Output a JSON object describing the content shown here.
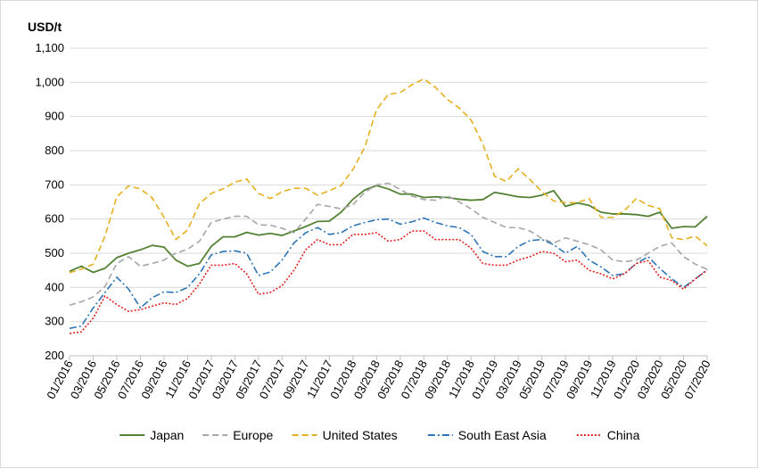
{
  "chart_data": {
    "type": "line",
    "ylabel": "USD/t",
    "ylim": [
      200,
      1100
    ],
    "yticks": [
      200,
      300,
      400,
      500,
      600,
      700,
      800,
      900,
      1000,
      1100
    ],
    "ytick_labels": [
      "200",
      "300",
      "400",
      "500",
      "600",
      "700",
      "800",
      "900",
      "1,000",
      "1,100"
    ],
    "grid": true,
    "legend_position": "bottom",
    "x": [
      "01/2016",
      "02/2016",
      "03/2016",
      "04/2016",
      "05/2016",
      "06/2016",
      "07/2016",
      "08/2016",
      "09/2016",
      "10/2016",
      "11/2016",
      "12/2016",
      "01/2017",
      "02/2017",
      "03/2017",
      "04/2017",
      "05/2017",
      "06/2017",
      "07/2017",
      "08/2017",
      "09/2017",
      "10/2017",
      "11/2017",
      "12/2017",
      "01/2018",
      "02/2018",
      "03/2018",
      "04/2018",
      "05/2018",
      "06/2018",
      "07/2018",
      "08/2018",
      "09/2018",
      "10/2018",
      "11/2018",
      "12/2018",
      "01/2019",
      "02/2019",
      "03/2019",
      "04/2019",
      "05/2019",
      "06/2019",
      "07/2019",
      "08/2019",
      "09/2019",
      "10/2019",
      "11/2019",
      "12/2019",
      "01/2020",
      "02/2020",
      "03/2020",
      "04/2020",
      "05/2020",
      "06/2020",
      "07/2020"
    ],
    "x_tick_labels": [
      "01/2016",
      "03/2016",
      "05/2016",
      "07/2016",
      "09/2016",
      "11/2016",
      "01/2017",
      "03/2017",
      "05/2017",
      "07/2017",
      "09/2017",
      "11/2017",
      "01/2018",
      "03/2018",
      "05/2018",
      "07/2018",
      "09/2018",
      "11/2018",
      "01/2019",
      "03/2019",
      "05/2019",
      "07/2019",
      "09/2019",
      "11/2019",
      "01/2020",
      "03/2020",
      "05/2020",
      "07/2020"
    ],
    "series": [
      {
        "name": "Japan",
        "color": "#548235",
        "dash": "solid",
        "values": [
          447,
          462,
          444,
          456,
          487,
          500,
          510,
          523,
          518,
          480,
          462,
          470,
          520,
          548,
          548,
          561,
          553,
          558,
          552,
          565,
          578,
          593,
          594,
          620,
          658,
          685,
          698,
          688,
          673,
          673,
          663,
          665,
          663,
          658,
          655,
          657,
          678,
          672,
          665,
          663,
          670,
          683,
          637,
          647,
          640,
          620,
          615,
          615,
          613,
          608,
          620,
          573,
          578,
          577,
          608
        ]
      },
      {
        "name": "Europe",
        "color": "#a6a6a6",
        "dash": "dashed",
        "values": [
          348,
          358,
          372,
          403,
          470,
          490,
          462,
          470,
          480,
          500,
          512,
          535,
          590,
          600,
          608,
          608,
          583,
          582,
          573,
          560,
          600,
          643,
          637,
          630,
          642,
          678,
          700,
          705,
          687,
          667,
          657,
          655,
          668,
          650,
          630,
          605,
          590,
          575,
          575,
          565,
          543,
          530,
          545,
          535,
          525,
          510,
          480,
          475,
          480,
          500,
          520,
          530,
          490,
          468,
          453
        ]
      },
      {
        "name": "United States",
        "color": "#e6b020",
        "dash": "dashed",
        "values": [
          443,
          453,
          468,
          550,
          665,
          697,
          688,
          662,
          605,
          540,
          568,
          645,
          675,
          688,
          708,
          717,
          675,
          660,
          680,
          690,
          690,
          670,
          683,
          698,
          745,
          810,
          920,
          965,
          970,
          993,
          1010,
          985,
          950,
          925,
          890,
          820,
          725,
          710,
          747,
          715,
          680,
          653,
          648,
          648,
          660,
          605,
          605,
          625,
          660,
          640,
          630,
          545,
          540,
          550,
          522
        ]
      },
      {
        "name": "South East Asia",
        "color": "#2e75b6",
        "dash": "dashdot",
        "values": [
          280,
          287,
          340,
          385,
          430,
          395,
          340,
          370,
          387,
          385,
          400,
          440,
          495,
          505,
          507,
          500,
          435,
          445,
          480,
          530,
          560,
          575,
          555,
          560,
          580,
          590,
          598,
          600,
          585,
          592,
          603,
          590,
          580,
          575,
          555,
          505,
          490,
          490,
          520,
          537,
          540,
          525,
          500,
          520,
          480,
          460,
          435,
          440,
          470,
          490,
          455,
          425,
          400,
          425,
          452
        ]
      },
      {
        "name": "China",
        "color": "#e02020",
        "dash": "dotted",
        "values": [
          265,
          270,
          310,
          375,
          350,
          330,
          335,
          345,
          355,
          350,
          368,
          410,
          465,
          465,
          470,
          440,
          380,
          385,
          405,
          450,
          510,
          540,
          525,
          525,
          555,
          555,
          560,
          535,
          540,
          565,
          565,
          540,
          540,
          540,
          515,
          470,
          465,
          465,
          480,
          490,
          505,
          500,
          475,
          480,
          450,
          440,
          425,
          440,
          470,
          478,
          430,
          420,
          395,
          425,
          450
        ]
      }
    ]
  }
}
